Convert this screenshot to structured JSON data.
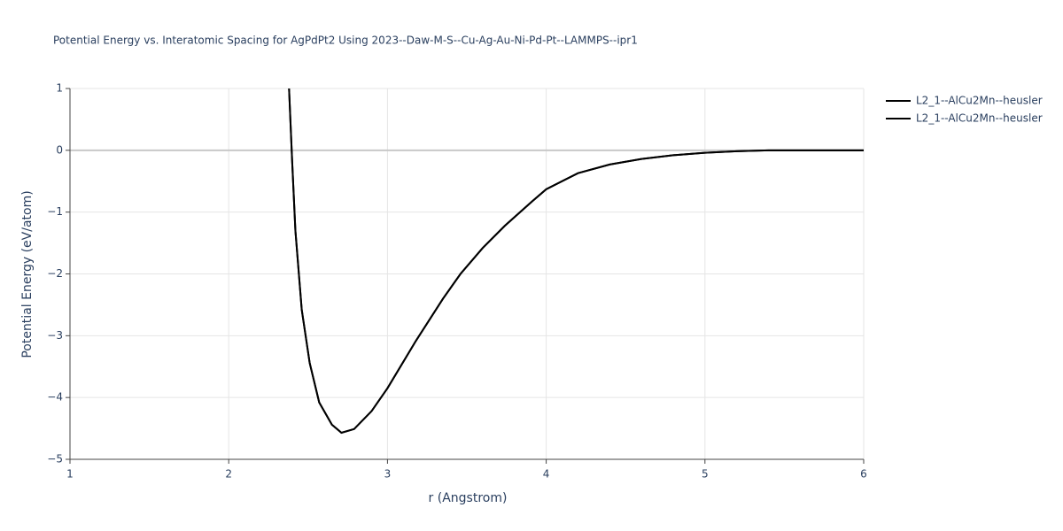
{
  "chart_data": {
    "type": "line",
    "title": "Potential Energy vs. Interatomic Spacing for AgPdPt2 Using 2023--Daw-M-S--Cu-Ag-Au-Ni-Pd-Pt--LAMMPS--ipr1",
    "x_label": "r (Angstrom)",
    "y_label": "Potential Energy (eV/atom)",
    "x": [
      2.38,
      2.39,
      2.4,
      2.42,
      2.46,
      2.51,
      2.57,
      2.65,
      2.71,
      2.79,
      2.9,
      3.0,
      3.18,
      3.35,
      3.46,
      3.6,
      3.74,
      3.91,
      4.0,
      4.2,
      4.4,
      4.6,
      4.8,
      5.0,
      5.2,
      5.4,
      6.0
    ],
    "series": [
      {
        "name": "L2_1--AlCu2Mn--heusler",
        "color": "#000000",
        "values": [
          1.0,
          0.4,
          -0.2,
          -1.3,
          -2.58,
          -3.44,
          -4.08,
          -4.44,
          -4.57,
          -4.51,
          -4.22,
          -3.85,
          -3.08,
          -2.4,
          -2.0,
          -1.58,
          -1.22,
          -0.83,
          -0.63,
          -0.37,
          -0.23,
          -0.14,
          -0.08,
          -0.04,
          -0.015,
          0.0,
          0.0
        ]
      },
      {
        "name": "L2_1--AlCu2Mn--heusler",
        "color": "#000000",
        "values": [
          1.0,
          0.4,
          -0.2,
          -1.3,
          -2.58,
          -3.44,
          -4.08,
          -4.44,
          -4.57,
          -4.51,
          -4.22,
          -3.85,
          -3.08,
          -2.4,
          -2.0,
          -1.58,
          -1.22,
          -0.83,
          -0.63,
          -0.37,
          -0.23,
          -0.14,
          -0.08,
          -0.04,
          -0.015,
          0.0,
          0.0
        ]
      }
    ],
    "xlim": [
      1,
      6
    ],
    "xticks": [
      1,
      2,
      3,
      4,
      5,
      6
    ],
    "ylim": [
      -5,
      1
    ],
    "yticks": [
      {
        "value": -5,
        "label": "−5"
      },
      {
        "value": -4,
        "label": "−4"
      },
      {
        "value": -3,
        "label": "−3"
      },
      {
        "value": -2,
        "label": "−2"
      },
      {
        "value": -1,
        "label": "−1"
      },
      0,
      1
    ],
    "grid": true,
    "legend": "right"
  }
}
